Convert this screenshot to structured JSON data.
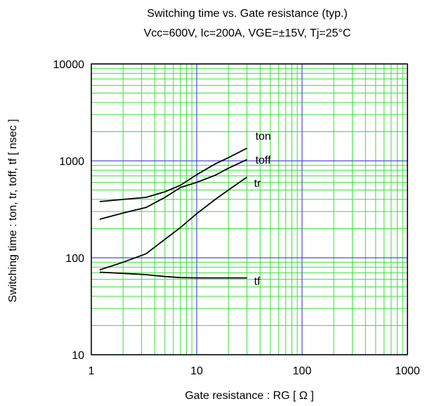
{
  "chart_data": {
    "type": "line",
    "title": "Switching time vs. Gate resistance (typ.)",
    "subtitle": "Vcc=600V, Ic=200A, VGE=±15V,  Tj=25°C",
    "xlabel": "Gate resistance : RG [ Ω ]",
    "ylabel": "Switching time : ton, tr, toff, tf [ nsec ]",
    "xscale": "log",
    "yscale": "log",
    "xlim": [
      1,
      1000
    ],
    "ylim": [
      10,
      10000
    ],
    "xticks": [
      1,
      10,
      100,
      1000
    ],
    "xtick_labels": [
      "1",
      "10",
      "100",
      "1000"
    ],
    "yticks": [
      10,
      100,
      1000,
      10000
    ],
    "ytick_labels": [
      "10",
      "100",
      "1000",
      "10000"
    ],
    "grid": true,
    "colors": {
      "major_grid": "#4a4ae0",
      "minor_grid": "#38e038",
      "series": "#000000",
      "frame": "#000000"
    },
    "series": [
      {
        "name": "ton",
        "x": [
          1.2,
          2,
          3.3,
          5,
          7,
          10,
          15,
          20,
          30
        ],
        "y": [
          380,
          400,
          420,
          480,
          560,
          720,
          930,
          1080,
          1350
        ]
      },
      {
        "name": "toff",
        "x": [
          1.2,
          2,
          3.3,
          5,
          7,
          10,
          15,
          20,
          30
        ],
        "y": [
          250,
          290,
          330,
          420,
          530,
          600,
          710,
          840,
          1030
        ]
      },
      {
        "name": "tr",
        "x": [
          1.2,
          2,
          3.3,
          5,
          7,
          10,
          15,
          20,
          30
        ],
        "y": [
          75,
          90,
          110,
          155,
          205,
          285,
          400,
          500,
          680
        ]
      },
      {
        "name": "tf",
        "x": [
          1.2,
          2,
          3.3,
          5,
          7,
          10,
          15,
          20,
          30
        ],
        "y": [
          71,
          69,
          67,
          64,
          62.5,
          62,
          62,
          62,
          62
        ]
      }
    ]
  }
}
